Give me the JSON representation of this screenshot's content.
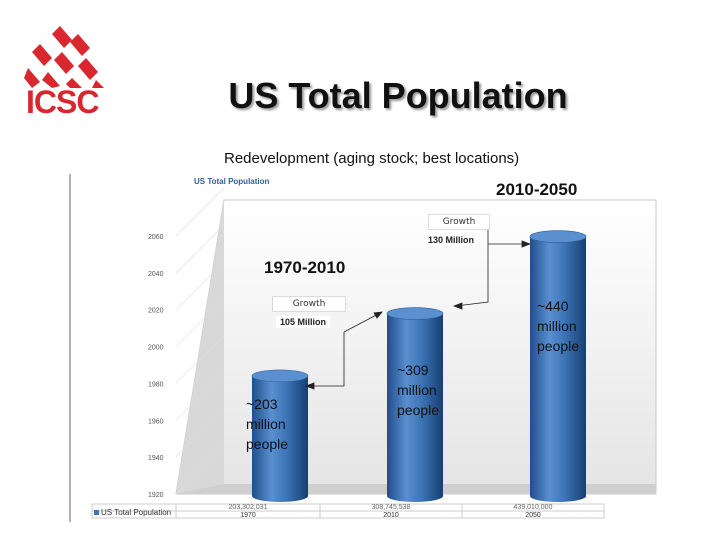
{
  "logo": {
    "text": "ICSC",
    "color": "#d8272e"
  },
  "slide": {
    "title": "US Total Population",
    "subtitle": "Redevelopment (aging stock; best locations)"
  },
  "ranges": {
    "recent": "1970-2010",
    "future": "2010-2050"
  },
  "growth": [
    {
      "label": "Growth",
      "value": "105 Million"
    },
    {
      "label": "Growth",
      "value": "130 Million"
    }
  ],
  "annotations": [
    {
      "lines": [
        "~203",
        "million",
        "people"
      ]
    },
    {
      "lines": [
        "~309",
        "million",
        "people"
      ]
    },
    {
      "lines": [
        "~440",
        "million",
        "people"
      ]
    }
  ],
  "chart_data": {
    "type": "bar",
    "title": "US Total Population",
    "categories": [
      "1970",
      "2010",
      "2050"
    ],
    "series": [
      {
        "name": "US Total Population",
        "values": [
          203302031,
          308745538,
          439010000
        ]
      }
    ],
    "value_labels": [
      "203,302,031",
      "308,745,538",
      "439,010,000"
    ],
    "y_tick_labels": [
      "1920",
      "1940",
      "1960",
      "1980",
      "2000",
      "2020",
      "2040",
      "2060"
    ],
    "legend_position": "bottom-left",
    "bar_color": "#3e76b8"
  }
}
